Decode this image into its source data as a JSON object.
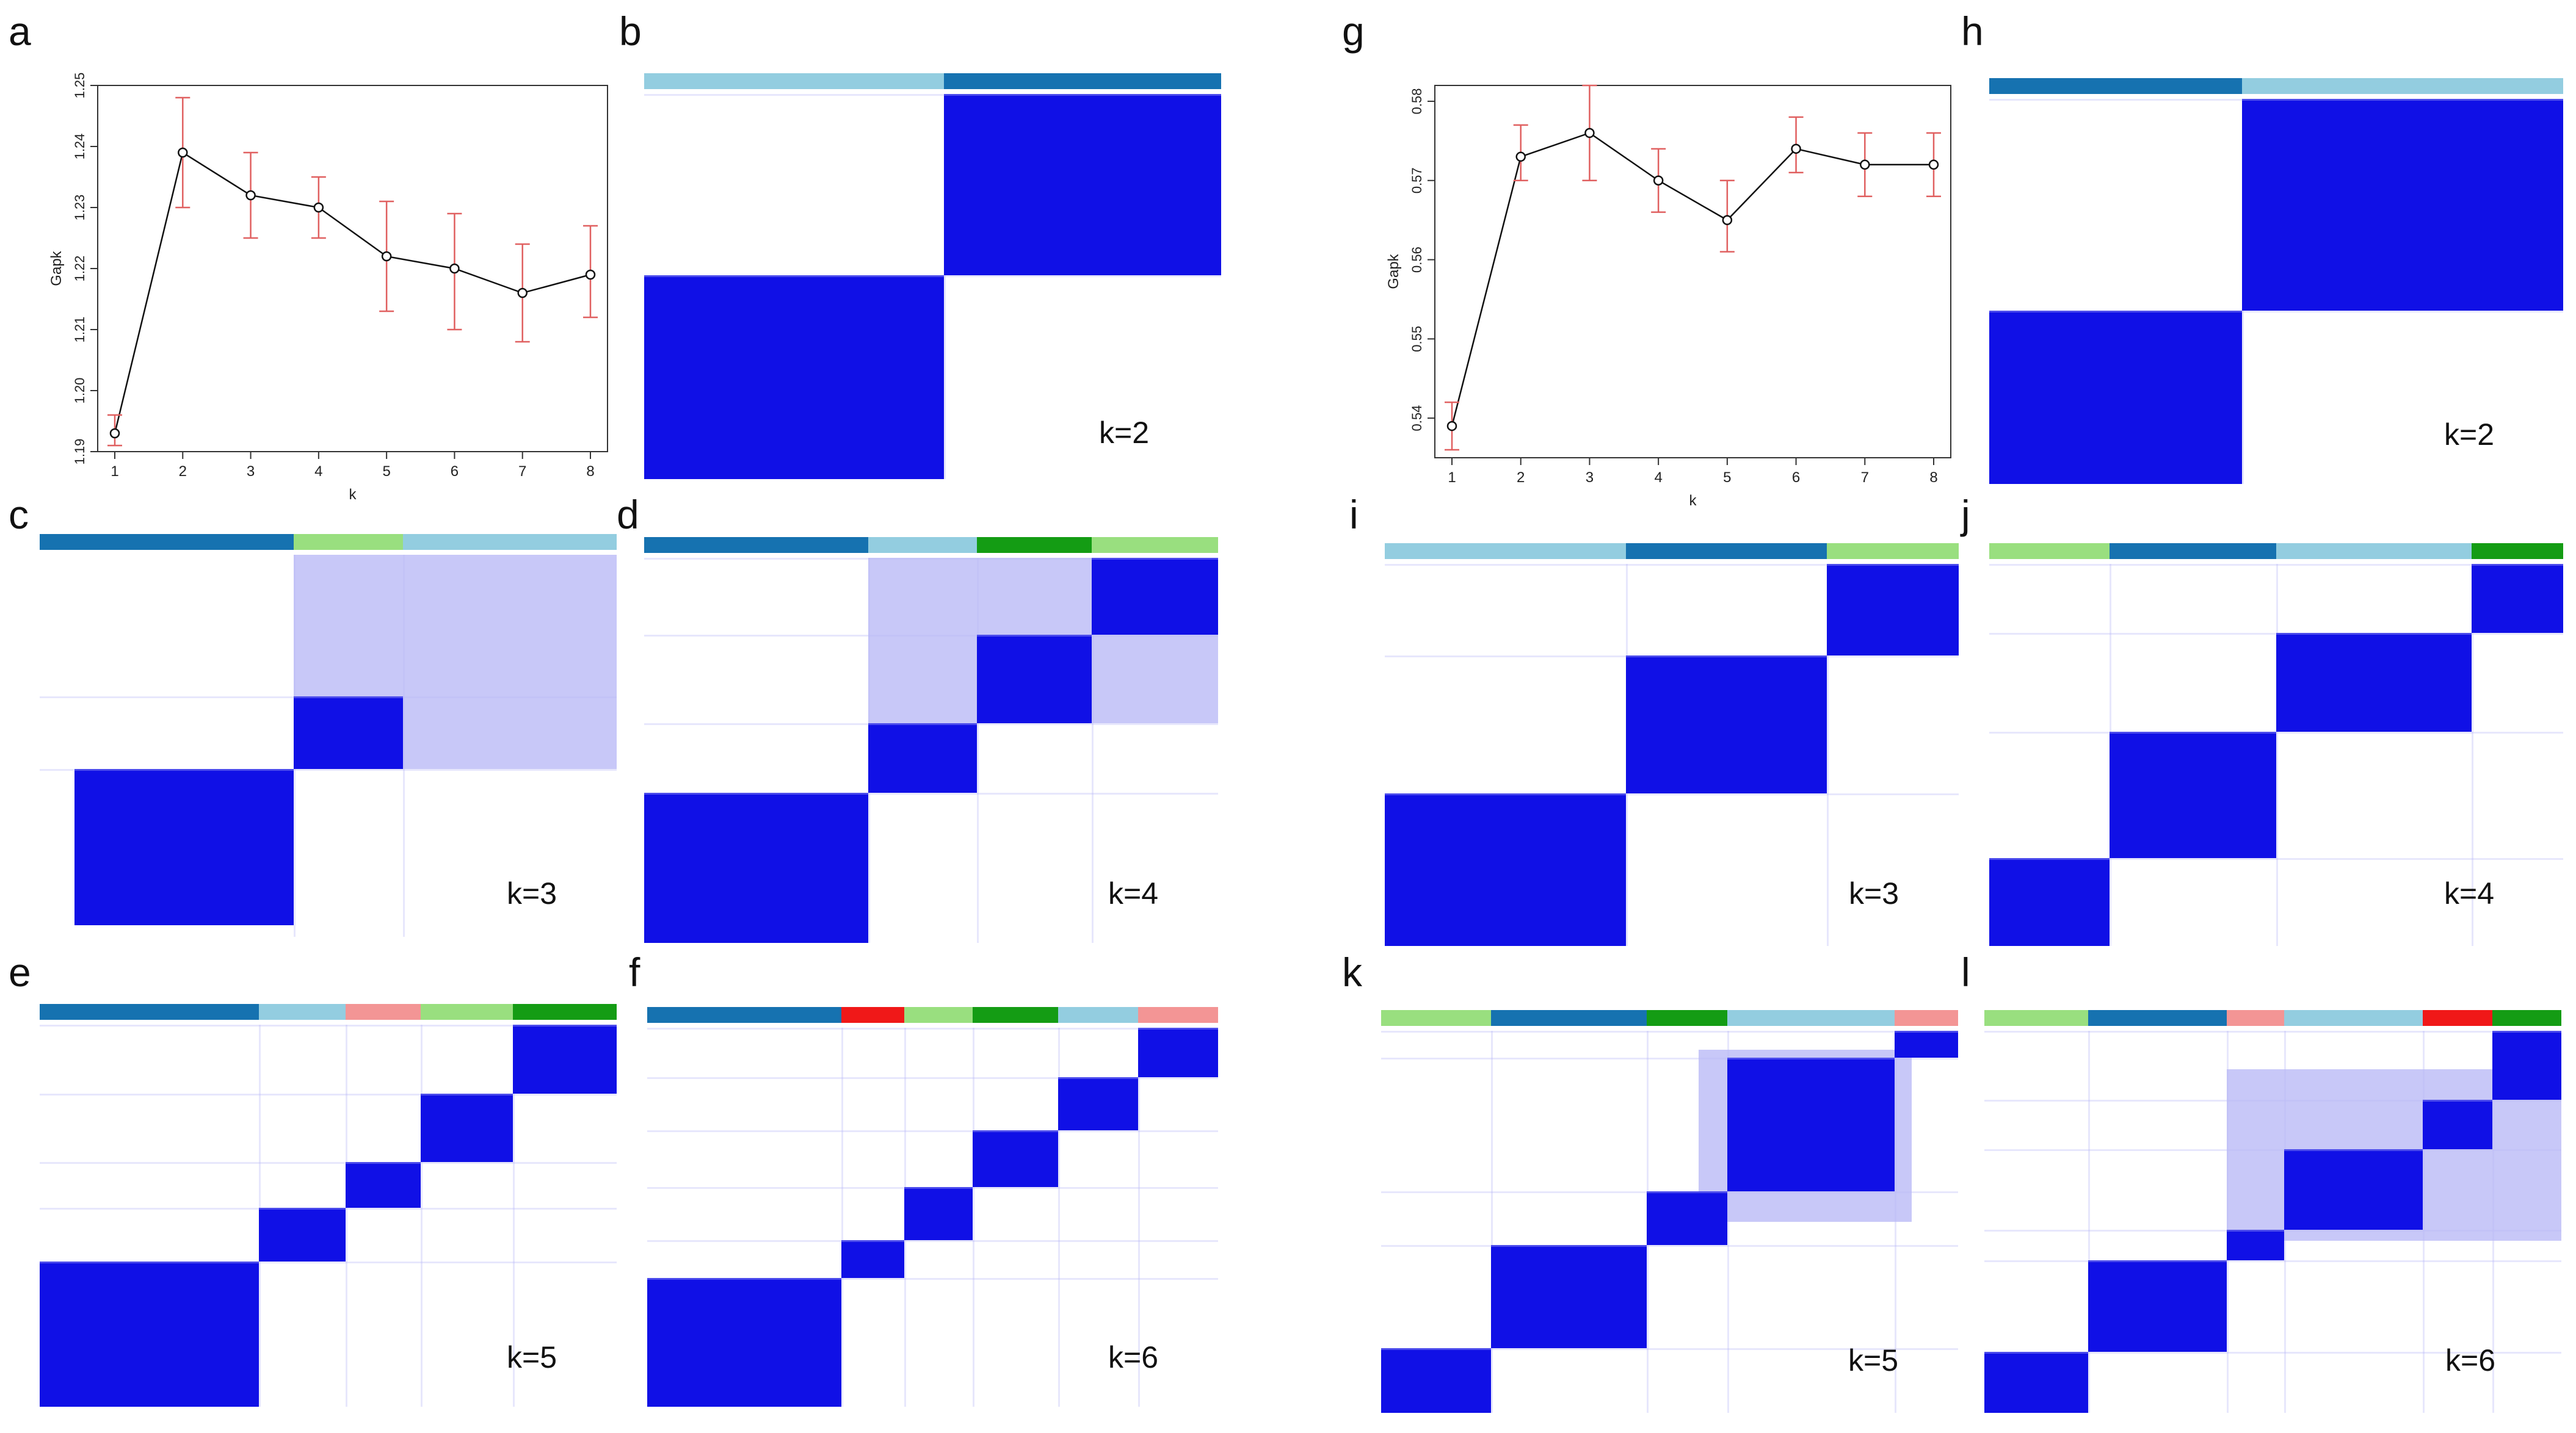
{
  "colors": {
    "heat": "#1010e6",
    "lightblue": "#93cde0",
    "darkblue": "#1672b0",
    "lightgreen": "#99df7f",
    "green": "#149c14",
    "pink": "#f39595",
    "red": "#f01818",
    "error": "#e06060"
  },
  "chart_data": [
    {
      "panel": "a",
      "type": "line",
      "title": "",
      "xlabel": "k",
      "ylabel": "Gapk",
      "x": [
        1,
        2,
        3,
        4,
        5,
        6,
        7,
        8
      ],
      "values": [
        1.193,
        1.239,
        1.232,
        1.23,
        1.222,
        1.22,
        1.216,
        1.219
      ],
      "err_low": [
        1.191,
        1.23,
        1.225,
        1.225,
        1.213,
        1.21,
        1.208,
        1.212
      ],
      "err_high": [
        1.196,
        1.248,
        1.239,
        1.235,
        1.231,
        1.229,
        1.224,
        1.227
      ],
      "ylim": [
        1.19,
        1.25
      ],
      "yticks": [
        "1.19",
        "1.20",
        "1.21",
        "1.22",
        "1.23",
        "1.24",
        "1.25"
      ],
      "xticks": [
        "1",
        "2",
        "3",
        "4",
        "5",
        "6",
        "7",
        "8"
      ]
    },
    {
      "panel": "g",
      "type": "line",
      "title": "",
      "xlabel": "k",
      "ylabel": "Gapk",
      "x": [
        1,
        2,
        3,
        4,
        5,
        6,
        7,
        8
      ],
      "values": [
        0.539,
        0.573,
        0.576,
        0.57,
        0.565,
        0.574,
        0.572,
        0.572
      ],
      "err_low": [
        0.536,
        0.57,
        0.57,
        0.566,
        0.561,
        0.571,
        0.568,
        0.568
      ],
      "err_high": [
        0.542,
        0.577,
        0.582,
        0.574,
        0.57,
        0.578,
        0.576,
        0.576
      ],
      "ylim": [
        0.535,
        0.582
      ],
      "yticks": [
        "0.54",
        "0.55",
        "0.56",
        "0.57",
        "0.58"
      ],
      "xticks": [
        "1",
        "2",
        "3",
        "4",
        "5",
        "6",
        "7",
        "8"
      ]
    }
  ],
  "panels": {
    "a": {
      "letter": "a"
    },
    "b": {
      "letter": "b",
      "k": "k=2",
      "strip": [
        [
          "lightblue",
          0.52
        ],
        [
          "darkblue",
          0.48
        ]
      ],
      "blocks": [
        [
          0.0,
          0.47,
          0.52,
          1.0
        ],
        [
          0.52,
          0.0,
          1.0,
          0.47
        ]
      ]
    },
    "c": {
      "letter": "c",
      "k": "k=3",
      "strip": [
        [
          "darkblue",
          0.44
        ],
        [
          "lightgreen",
          0.19
        ],
        [
          "lightblue",
          0.37
        ]
      ],
      "blocks": [
        [
          0.06,
          0.56,
          0.44,
          0.97
        ],
        [
          0.44,
          0.37,
          0.63,
          0.56
        ]
      ],
      "hazes": [
        [
          0.44,
          0.0,
          1.0,
          0.37
        ],
        [
          0.63,
          0.37,
          1.0,
          0.56
        ]
      ]
    },
    "d": {
      "letter": "d",
      "k": "k=4",
      "strip": [
        [
          "darkblue",
          0.39
        ],
        [
          "lightblue",
          0.19
        ],
        [
          "green",
          0.2
        ],
        [
          "lightgreen",
          0.22
        ]
      ],
      "blocks": [
        [
          0.0,
          0.61,
          0.39,
          1.0
        ],
        [
          0.39,
          0.43,
          0.58,
          0.61
        ],
        [
          0.58,
          0.2,
          0.78,
          0.43
        ],
        [
          0.78,
          0.0,
          1.0,
          0.2
        ]
      ],
      "hazes": [
        [
          0.39,
          0.0,
          1.0,
          0.43
        ]
      ]
    },
    "e": {
      "letter": "e",
      "k": "k=5",
      "strip": [
        [
          "darkblue",
          0.38
        ],
        [
          "lightblue",
          0.15
        ],
        [
          "pink",
          0.13
        ],
        [
          "lightgreen",
          0.16
        ],
        [
          "green",
          0.18
        ]
      ],
      "blocks": [
        [
          0.0,
          0.62,
          0.38,
          1.0
        ],
        [
          0.38,
          0.48,
          0.53,
          0.62
        ],
        [
          0.53,
          0.36,
          0.66,
          0.48
        ],
        [
          0.66,
          0.18,
          0.82,
          0.36
        ],
        [
          0.82,
          0.0,
          1.0,
          0.18
        ]
      ]
    },
    "f": {
      "letter": "f",
      "k": "k=6",
      "strip": [
        [
          "darkblue",
          0.34
        ],
        [
          "red",
          0.11
        ],
        [
          "lightgreen",
          0.12
        ],
        [
          "green",
          0.15
        ],
        [
          "lightblue",
          0.14
        ],
        [
          "pink",
          0.14
        ]
      ],
      "blocks": [
        [
          0.0,
          0.66,
          0.34,
          1.0
        ],
        [
          0.34,
          0.56,
          0.45,
          0.66
        ],
        [
          0.45,
          0.42,
          0.57,
          0.56
        ],
        [
          0.57,
          0.27,
          0.72,
          0.42
        ],
        [
          0.72,
          0.13,
          0.86,
          0.27
        ],
        [
          0.86,
          0.0,
          1.0,
          0.13
        ]
      ]
    },
    "g": {
      "letter": "g"
    },
    "h": {
      "letter": "h",
      "k": "k=2",
      "strip": [
        [
          "darkblue",
          0.44
        ],
        [
          "lightblue",
          0.56
        ]
      ],
      "blocks": [
        [
          0.0,
          0.55,
          0.44,
          1.0
        ],
        [
          0.44,
          0.0,
          1.0,
          0.55
        ]
      ]
    },
    "i": {
      "letter": "i",
      "k": "k=3",
      "strip": [
        [
          "lightblue",
          0.42
        ],
        [
          "darkblue",
          0.35
        ],
        [
          "lightgreen",
          0.23
        ]
      ],
      "blocks": [
        [
          0.0,
          0.6,
          0.42,
          1.0
        ],
        [
          0.42,
          0.24,
          0.77,
          0.6
        ],
        [
          0.77,
          0.0,
          1.0,
          0.24
        ]
      ]
    },
    "j": {
      "letter": "j",
      "k": "k=4",
      "strip": [
        [
          "lightgreen",
          0.21
        ],
        [
          "darkblue",
          0.29
        ],
        [
          "lightblue",
          0.34
        ],
        [
          "green",
          0.16
        ]
      ],
      "blocks": [
        [
          0.0,
          0.77,
          0.21,
          1.0
        ],
        [
          0.21,
          0.44,
          0.5,
          0.77
        ],
        [
          0.5,
          0.18,
          0.84,
          0.44
        ],
        [
          0.84,
          0.0,
          1.0,
          0.18
        ]
      ]
    },
    "k": {
      "letter": "k",
      "k": "k=5",
      "strip": [
        [
          "lightgreen",
          0.19
        ],
        [
          "darkblue",
          0.27
        ],
        [
          "green",
          0.14
        ],
        [
          "lightblue",
          0.29
        ],
        [
          "pink",
          0.11
        ]
      ],
      "blocks": [
        [
          0.0,
          0.83,
          0.19,
          1.0
        ],
        [
          0.19,
          0.56,
          0.46,
          0.83
        ],
        [
          0.46,
          0.42,
          0.6,
          0.56
        ],
        [
          0.6,
          0.07,
          0.89,
          0.42
        ],
        [
          0.89,
          0.0,
          1.0,
          0.07
        ]
      ],
      "hazes": [
        [
          0.55,
          0.05,
          0.92,
          0.5
        ]
      ]
    },
    "l": {
      "letter": "l",
      "k": "k=6",
      "strip": [
        [
          "lightgreen",
          0.18
        ],
        [
          "darkblue",
          0.24
        ],
        [
          "pink",
          0.1
        ],
        [
          "lightblue",
          0.24
        ],
        [
          "red",
          0.12
        ],
        [
          "green",
          0.12
        ]
      ],
      "blocks": [
        [
          0.0,
          0.84,
          0.18,
          1.0
        ],
        [
          0.18,
          0.6,
          0.42,
          0.84
        ],
        [
          0.42,
          0.52,
          0.52,
          0.6
        ],
        [
          0.52,
          0.31,
          0.76,
          0.52
        ],
        [
          0.76,
          0.18,
          0.88,
          0.31
        ],
        [
          0.88,
          0.0,
          1.0,
          0.18
        ]
      ],
      "hazes": [
        [
          0.42,
          0.1,
          1.0,
          0.55
        ]
      ]
    }
  }
}
